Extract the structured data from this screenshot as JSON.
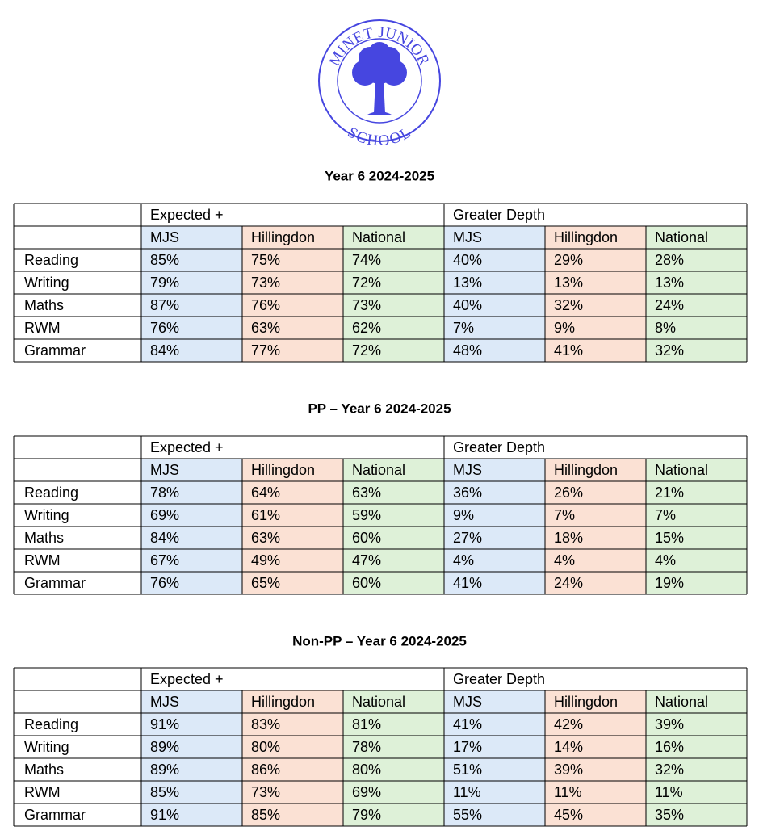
{
  "logo": {
    "top_text": "MINET JUNIOR",
    "bottom_text": "SCHOOL"
  },
  "tables": [
    {
      "title": "Year 6 2024-2025",
      "groups": [
        "Expected +",
        "Greater Depth"
      ],
      "columns": [
        "MJS",
        "Hillingdon",
        "National",
        "MJS",
        "Hillingdon",
        "National"
      ],
      "rows": [
        {
          "label": "Reading",
          "cells": [
            "85%",
            "75%",
            "74%",
            "40%",
            "29%",
            "28%"
          ]
        },
        {
          "label": "Writing",
          "cells": [
            "79%",
            "73%",
            "72%",
            "13%",
            "13%",
            "13%"
          ]
        },
        {
          "label": "Maths",
          "cells": [
            "87%",
            "76%",
            "73%",
            "40%",
            "32%",
            "24%"
          ]
        },
        {
          "label": "RWM",
          "cells": [
            "76%",
            "63%",
            "62%",
            "7%",
            "9%",
            "8%"
          ]
        },
        {
          "label": "Grammar",
          "cells": [
            "84%",
            "77%",
            "72%",
            "48%",
            "41%",
            "32%"
          ]
        }
      ]
    },
    {
      "title": "PP – Year 6 2024-2025",
      "groups": [
        "Expected +",
        "Greater Depth"
      ],
      "columns": [
        "MJS",
        "Hillingdon",
        "National",
        "MJS",
        "Hillingdon",
        "National"
      ],
      "rows": [
        {
          "label": "Reading",
          "cells": [
            "78%",
            "64%",
            "63%",
            "36%",
            "26%",
            "21%"
          ]
        },
        {
          "label": "Writing",
          "cells": [
            "69%",
            "61%",
            "59%",
            "9%",
            "7%",
            "7%"
          ]
        },
        {
          "label": "Maths",
          "cells": [
            "84%",
            "63%",
            "60%",
            "27%",
            "18%",
            "15%"
          ]
        },
        {
          "label": "RWM",
          "cells": [
            "67%",
            "49%",
            "47%",
            "4%",
            "4%",
            "4%"
          ]
        },
        {
          "label": "Grammar",
          "cells": [
            "76%",
            "65%",
            "60%",
            "41%",
            "24%",
            "19%"
          ]
        }
      ]
    },
    {
      "title": "Non-PP – Year 6 2024-2025",
      "groups": [
        "Expected +",
        "Greater Depth"
      ],
      "columns": [
        "MJS",
        "Hillingdon",
        "National",
        "MJS",
        "Hillingdon",
        "National"
      ],
      "rows": [
        {
          "label": "Reading",
          "cells": [
            "91%",
            "83%",
            "81%",
            "41%",
            "42%",
            "39%"
          ]
        },
        {
          "label": "Writing",
          "cells": [
            "89%",
            "80%",
            "78%",
            "17%",
            "14%",
            "16%"
          ]
        },
        {
          "label": "Maths",
          "cells": [
            "89%",
            "86%",
            "80%",
            "51%",
            "39%",
            "32%"
          ]
        },
        {
          "label": "RWM",
          "cells": [
            "85%",
            "73%",
            "69%",
            "11%",
            "11%",
            "11%"
          ]
        },
        {
          "label": "Grammar",
          "cells": [
            "91%",
            "85%",
            "79%",
            "55%",
            "45%",
            "35%"
          ]
        }
      ]
    }
  ]
}
